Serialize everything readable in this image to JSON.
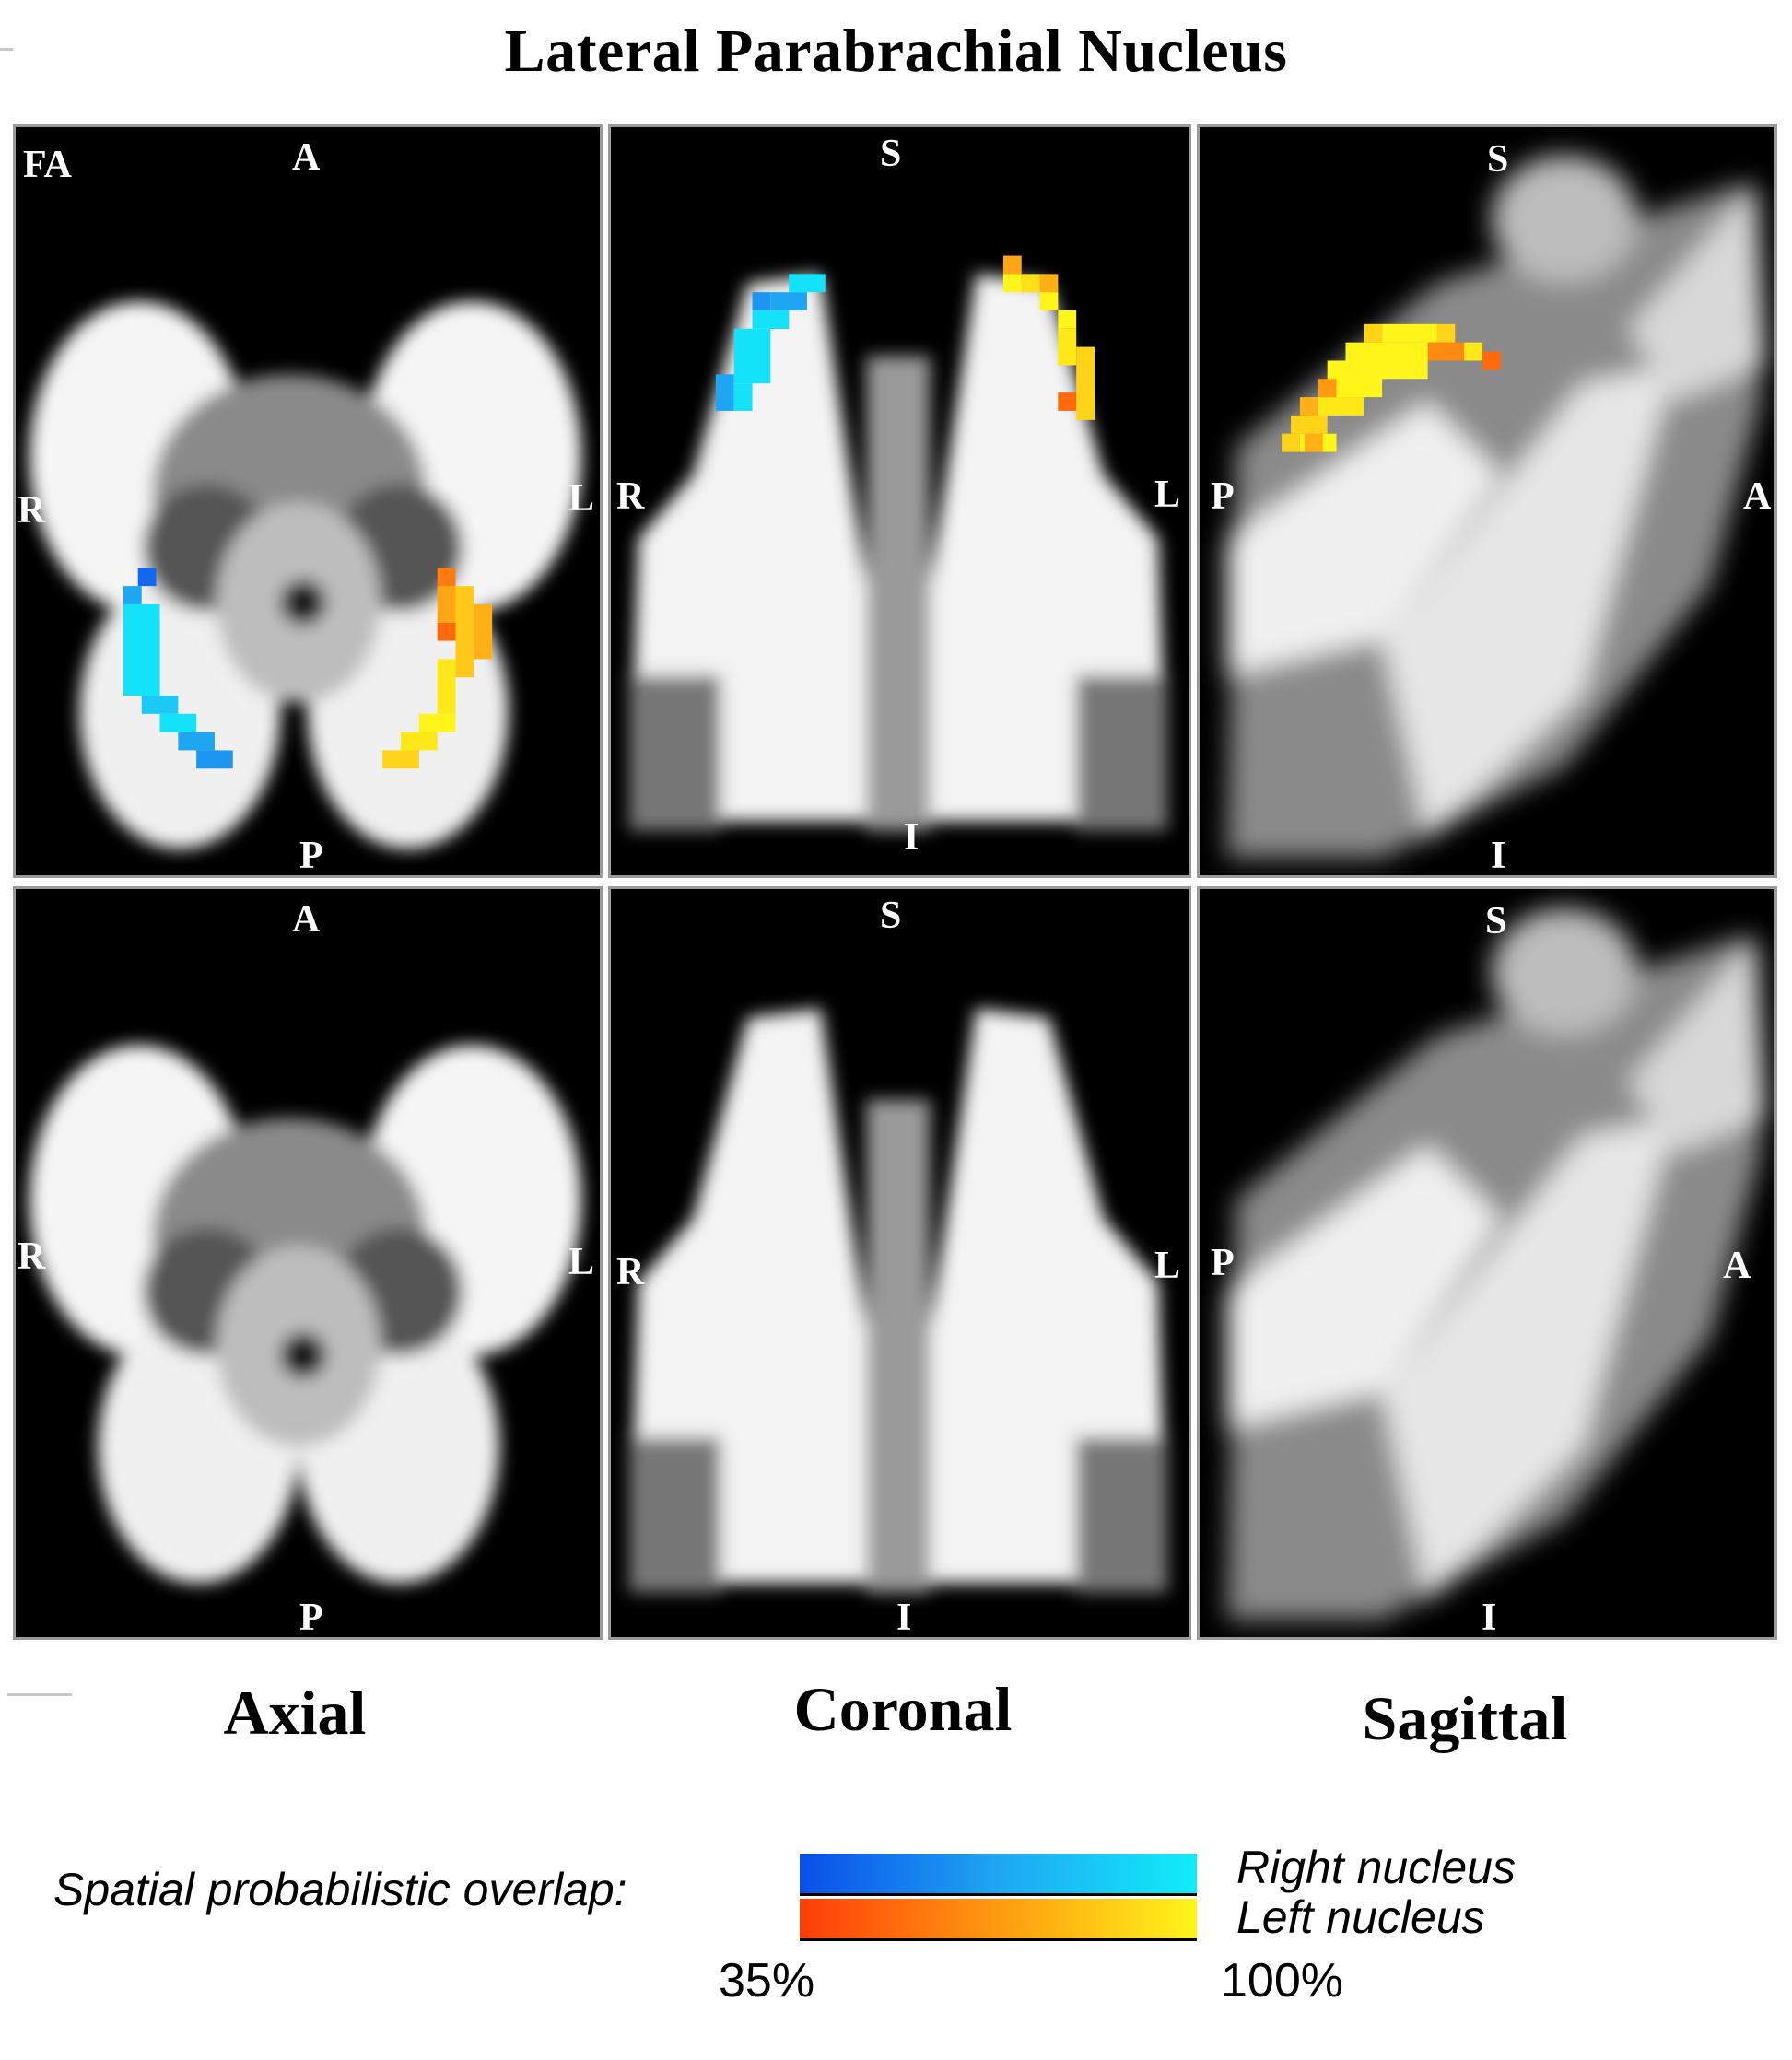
{
  "title": "Lateral Parabrachial Nucleus",
  "panel_labels": {
    "fa": "FA",
    "axial_top": {
      "anterior": "A",
      "posterior": "P",
      "right": "R",
      "left": "L"
    },
    "coronal_top": {
      "superior": "S",
      "inferior": "I",
      "right": "R",
      "left": "L"
    },
    "sagittal_top": {
      "superior": "S",
      "inferior": "I",
      "posterior": "P",
      "anterior": "A"
    },
    "axial_bottom": {
      "anterior": "A",
      "posterior": "P",
      "right": "R",
      "left": "L"
    },
    "coronal_bottom": {
      "superior": "S",
      "inferior": "I",
      "right": "R",
      "left": "L"
    },
    "sagittal_bottom": {
      "superior": "S",
      "inferior": "I",
      "posterior": "P",
      "anterior": "A"
    }
  },
  "views": {
    "axial": "Axial",
    "coronal": "Coronal",
    "sagittal": "Sagittal"
  },
  "legend": {
    "label": "Spatial probabilistic overlap:",
    "right_nucleus": "Right nucleus",
    "left_nucleus": "Left nucleus",
    "min_pct": "35%",
    "max_pct": "100%",
    "right_colors": [
      "#0a4fe8",
      "#1fa6f2",
      "#12ecf9"
    ],
    "left_colors": [
      "#ff3d0a",
      "#ff9a10",
      "#fff51a"
    ]
  }
}
